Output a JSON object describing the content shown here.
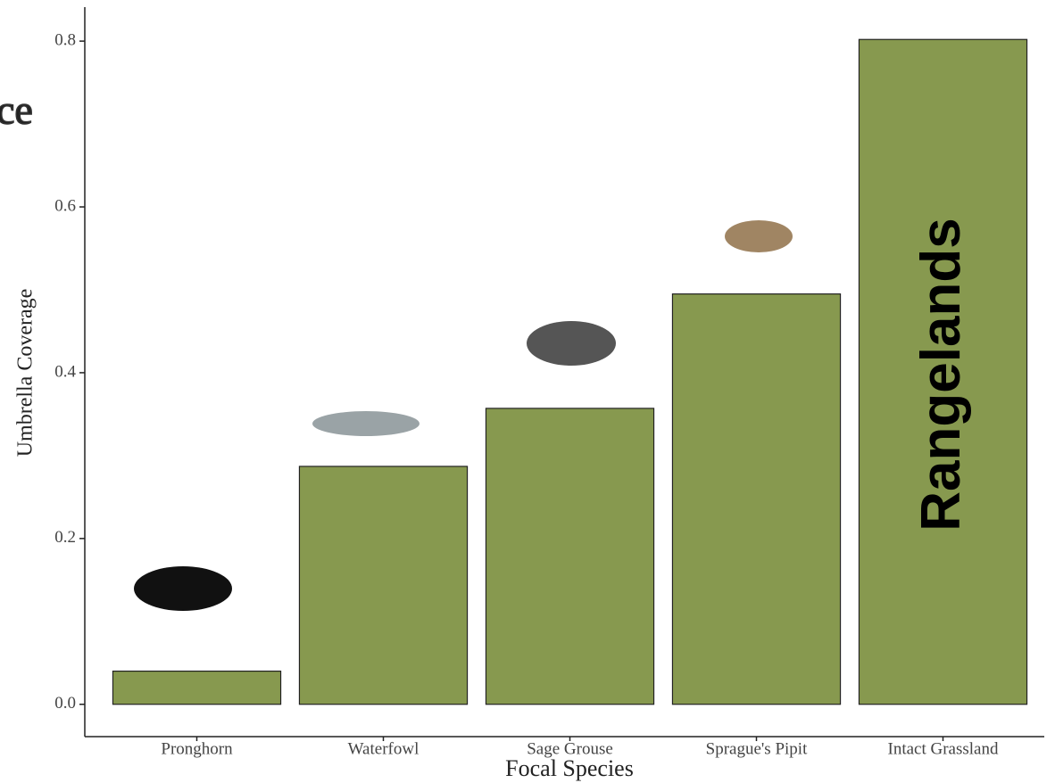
{
  "chart_data": {
    "type": "bar",
    "annotations": [
      "ce",
      "Rangelands"
    ],
    "x_label": "Focal Species",
    "y_label": "Umbrella Coverage",
    "categories": [
      "Pronghorn",
      "Waterfowl",
      "Sage Grouse",
      "Sprague's Pipit",
      "Intact Grassland"
    ],
    "values": [
      0.04,
      0.287,
      0.357,
      0.495,
      0.802
    ],
    "color": "#87994f",
    "ylim": [
      -0.039,
      0.841
    ],
    "yticks": [
      {
        "value": 0,
        "label": "0.0"
      },
      0.2,
      0.4,
      0.6,
      0.8
    ],
    "grid": false
  }
}
